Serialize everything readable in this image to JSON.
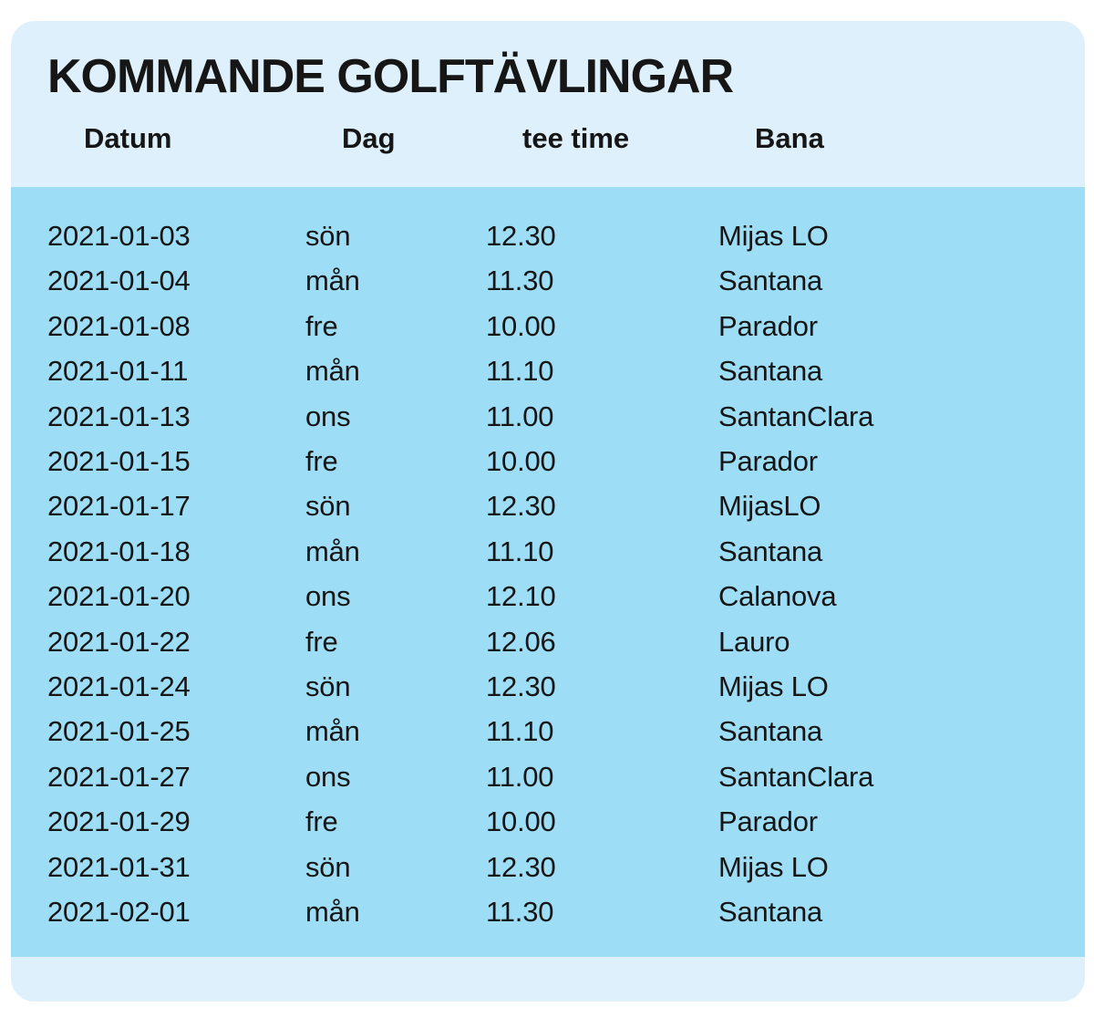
{
  "card": {
    "title": "KOMMANDE GOLFTÄVLINGAR",
    "colors": {
      "header_bg": "#def0fb",
      "body_bg": "#9eddf6",
      "text": "#161616"
    },
    "table": {
      "columns": [
        {
          "key": "datum",
          "label": "Datum"
        },
        {
          "key": "dag",
          "label": "Dag"
        },
        {
          "key": "tee-time",
          "label": "tee time"
        },
        {
          "key": "bana",
          "label": "Bana"
        }
      ],
      "rows": [
        [
          "2021-01-03",
          "sön",
          "12.30",
          "Mijas LO"
        ],
        [
          "2021-01-04",
          "mån",
          "11.30",
          "Santana"
        ],
        [
          "2021-01-08",
          "fre",
          "10.00",
          "Parador"
        ],
        [
          "2021-01-11",
          "mån",
          "11.10",
          "Santana"
        ],
        [
          "2021-01-13",
          "ons",
          "11.00",
          "SantanClara"
        ],
        [
          "2021-01-15",
          "fre",
          "10.00",
          "Parador"
        ],
        [
          "2021-01-17",
          "sön",
          "12.30",
          "MijasLO"
        ],
        [
          "2021-01-18",
          "mån",
          "11.10",
          "Santana"
        ],
        [
          "2021-01-20",
          "ons",
          "12.10",
          "Calanova"
        ],
        [
          "2021-01-22",
          "fre",
          "12.06",
          "Lauro"
        ],
        [
          "2021-01-24",
          "sön",
          "12.30",
          "Mijas LO"
        ],
        [
          "2021-01-25",
          "mån",
          "11.10",
          "Santana"
        ],
        [
          "2021-01-27",
          "ons",
          "11.00",
          "SantanClara"
        ],
        [
          "2021-01-29",
          "fre",
          "10.00",
          "Parador"
        ],
        [
          "2021-01-31",
          "sön",
          "12.30",
          "Mijas LO"
        ],
        [
          "2021-02-01",
          "mån",
          "11.30",
          "Santana"
        ]
      ]
    }
  }
}
